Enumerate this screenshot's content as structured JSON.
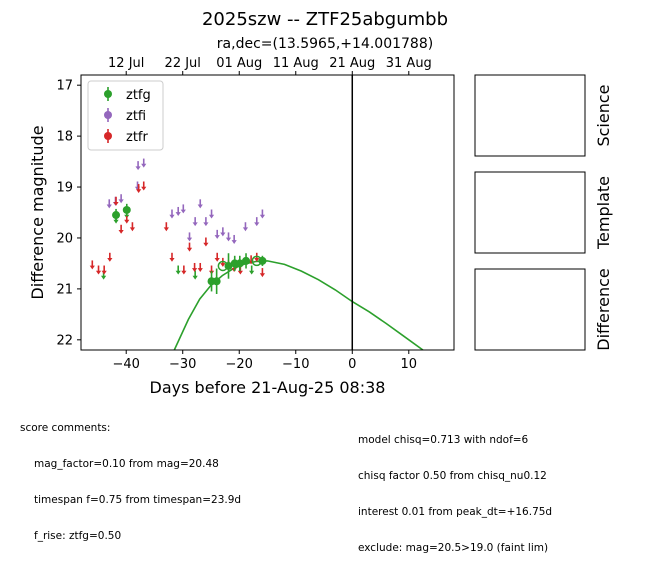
{
  "title": "2025szw -- ZTF25abgumbb",
  "subtitle": "ra,dec=(13.5965,+14.001788)",
  "chart_data": {
    "type": "scatter",
    "xlabel": "Days before 21-Aug-25 08:38",
    "ylabel": "Difference magnitude",
    "xlim": [
      -48,
      18
    ],
    "ylim": [
      22.2,
      16.8
    ],
    "y_inverted": true,
    "x_ticks": [
      -40,
      -30,
      -20,
      -10,
      0,
      10
    ],
    "y_ticks": [
      17,
      18,
      19,
      20,
      21,
      22
    ],
    "top_axis_ticks": [
      {
        "label": "12 Jul",
        "x": -40
      },
      {
        "label": "22 Jul",
        "x": -30
      },
      {
        "label": "01 Aug",
        "x": -20
      },
      {
        "label": "11 Aug",
        "x": -10
      },
      {
        "label": "21 Aug",
        "x": 0
      },
      {
        "label": "31 Aug",
        "x": 10
      }
    ],
    "vline_x": 0,
    "legend_position": "top-left",
    "series": [
      {
        "name": "ztfg",
        "color": "#2ca02c",
        "upper_limits": [
          {
            "x": -44.0,
            "y": 20.7
          },
          {
            "x": -41.8,
            "y": 19.6
          },
          {
            "x": -39.9,
            "y": 19.5
          },
          {
            "x": -30.8,
            "y": 20.6
          },
          {
            "x": -27.8,
            "y": 20.7
          },
          {
            "x": -17.8,
            "y": 20.6
          }
        ],
        "detections": [
          {
            "x": -41.8,
            "y": 19.55,
            "err": 0.12
          },
          {
            "x": -39.9,
            "y": 19.45,
            "err": 0.12
          },
          {
            "x": -24.9,
            "y": 20.85,
            "err": 0.2
          },
          {
            "x": -24.0,
            "y": 20.85,
            "err": 0.25
          },
          {
            "x": -21.9,
            "y": 20.55,
            "err": 0.25
          },
          {
            "x": -20.8,
            "y": 20.5,
            "err": 0.15
          },
          {
            "x": -19.9,
            "y": 20.5,
            "err": 0.15
          },
          {
            "x": -18.8,
            "y": 20.45,
            "err": 0.15
          },
          {
            "x": -15.9,
            "y": 20.45,
            "err": 0.1
          }
        ],
        "open_points": [
          {
            "x": -22.9,
            "y": 20.55
          },
          {
            "x": -16.9,
            "y": 20.45
          }
        ],
        "model": [
          {
            "x": -31.5,
            "y": 22.2
          },
          {
            "x": -29,
            "y": 21.6
          },
          {
            "x": -27,
            "y": 21.2
          },
          {
            "x": -25,
            "y": 20.93
          },
          {
            "x": -23,
            "y": 20.74
          },
          {
            "x": -21,
            "y": 20.6
          },
          {
            "x": -19,
            "y": 20.51
          },
          {
            "x": -17,
            "y": 20.46
          },
          {
            "x": -15,
            "y": 20.45
          },
          {
            "x": -12,
            "y": 20.52
          },
          {
            "x": -9,
            "y": 20.65
          },
          {
            "x": -6,
            "y": 20.82
          },
          {
            "x": -3,
            "y": 21.02
          },
          {
            "x": 0,
            "y": 21.25
          },
          {
            "x": 3,
            "y": 21.45
          },
          {
            "x": 6,
            "y": 21.68
          },
          {
            "x": 9,
            "y": 21.92
          },
          {
            "x": 12.5,
            "y": 22.2
          }
        ]
      },
      {
        "name": "ztfi",
        "color": "#9467bd",
        "upper_limits": [
          {
            "x": -43.0,
            "y": 19.3
          },
          {
            "x": -41.9,
            "y": 19.25
          },
          {
            "x": -40.9,
            "y": 19.2
          },
          {
            "x": -38.0,
            "y": 18.95
          },
          {
            "x": -37.9,
            "y": 18.55
          },
          {
            "x": -36.9,
            "y": 18.5
          },
          {
            "x": -31.9,
            "y": 19.5
          },
          {
            "x": -30.8,
            "y": 19.45
          },
          {
            "x": -29.9,
            "y": 19.4
          },
          {
            "x": -28.8,
            "y": 19.95
          },
          {
            "x": -27.8,
            "y": 19.65
          },
          {
            "x": -26.9,
            "y": 19.3
          },
          {
            "x": -25.9,
            "y": 19.65
          },
          {
            "x": -24.9,
            "y": 19.5
          },
          {
            "x": -23.9,
            "y": 19.9
          },
          {
            "x": -22.9,
            "y": 19.85
          },
          {
            "x": -21.9,
            "y": 19.95
          },
          {
            "x": -20.9,
            "y": 20.0
          },
          {
            "x": -18.9,
            "y": 19.75
          },
          {
            "x": -16.9,
            "y": 19.65
          },
          {
            "x": -15.9,
            "y": 19.5
          }
        ],
        "detections": [],
        "open_points": []
      },
      {
        "name": "ztfr",
        "color": "#d62728",
        "upper_limits": [
          {
            "x": -46.0,
            "y": 20.5
          },
          {
            "x": -44.9,
            "y": 20.6
          },
          {
            "x": -43.9,
            "y": 20.6
          },
          {
            "x": -42.9,
            "y": 20.35
          },
          {
            "x": -41.8,
            "y": 19.25
          },
          {
            "x": -40.9,
            "y": 19.8
          },
          {
            "x": -39.9,
            "y": 19.6
          },
          {
            "x": -38.9,
            "y": 19.75
          },
          {
            "x": -37.8,
            "y": 19.0
          },
          {
            "x": -36.9,
            "y": 18.95
          },
          {
            "x": -32.9,
            "y": 19.75
          },
          {
            "x": -31.9,
            "y": 20.35
          },
          {
            "x": -29.8,
            "y": 20.6
          },
          {
            "x": -28.8,
            "y": 20.15
          },
          {
            "x": -27.9,
            "y": 20.55
          },
          {
            "x": -26.9,
            "y": 20.55
          },
          {
            "x": -25.9,
            "y": 20.05
          },
          {
            "x": -24.9,
            "y": 20.6
          },
          {
            "x": -23.9,
            "y": 20.35
          },
          {
            "x": -22.9,
            "y": 20.45
          },
          {
            "x": -21.9,
            "y": 20.5
          },
          {
            "x": -20.9,
            "y": 20.55
          },
          {
            "x": -19.8,
            "y": 20.6
          },
          {
            "x": -17.9,
            "y": 20.4
          },
          {
            "x": -16.9,
            "y": 20.35
          },
          {
            "x": -15.9,
            "y": 20.65
          }
        ],
        "detections": [],
        "open_points": []
      }
    ]
  },
  "side_panels": [
    "Science",
    "Template",
    "Difference"
  ],
  "score_comments": {
    "heading": "score comments:",
    "lines": [
      "mag_factor=0.10 from mag=20.48",
      "timespan f=0.75 from timespan=23.9d",
      "f_rise: ztfg=0.50"
    ]
  },
  "model_comments": [
    "model chisq=0.713 with ndof=6",
    "chisq factor 0.50 from chisq_nu0.12",
    "interest 0.01 from peak_dt=+16.75d",
    "exclude: mag=20.5>19.0 (faint lim)"
  ]
}
